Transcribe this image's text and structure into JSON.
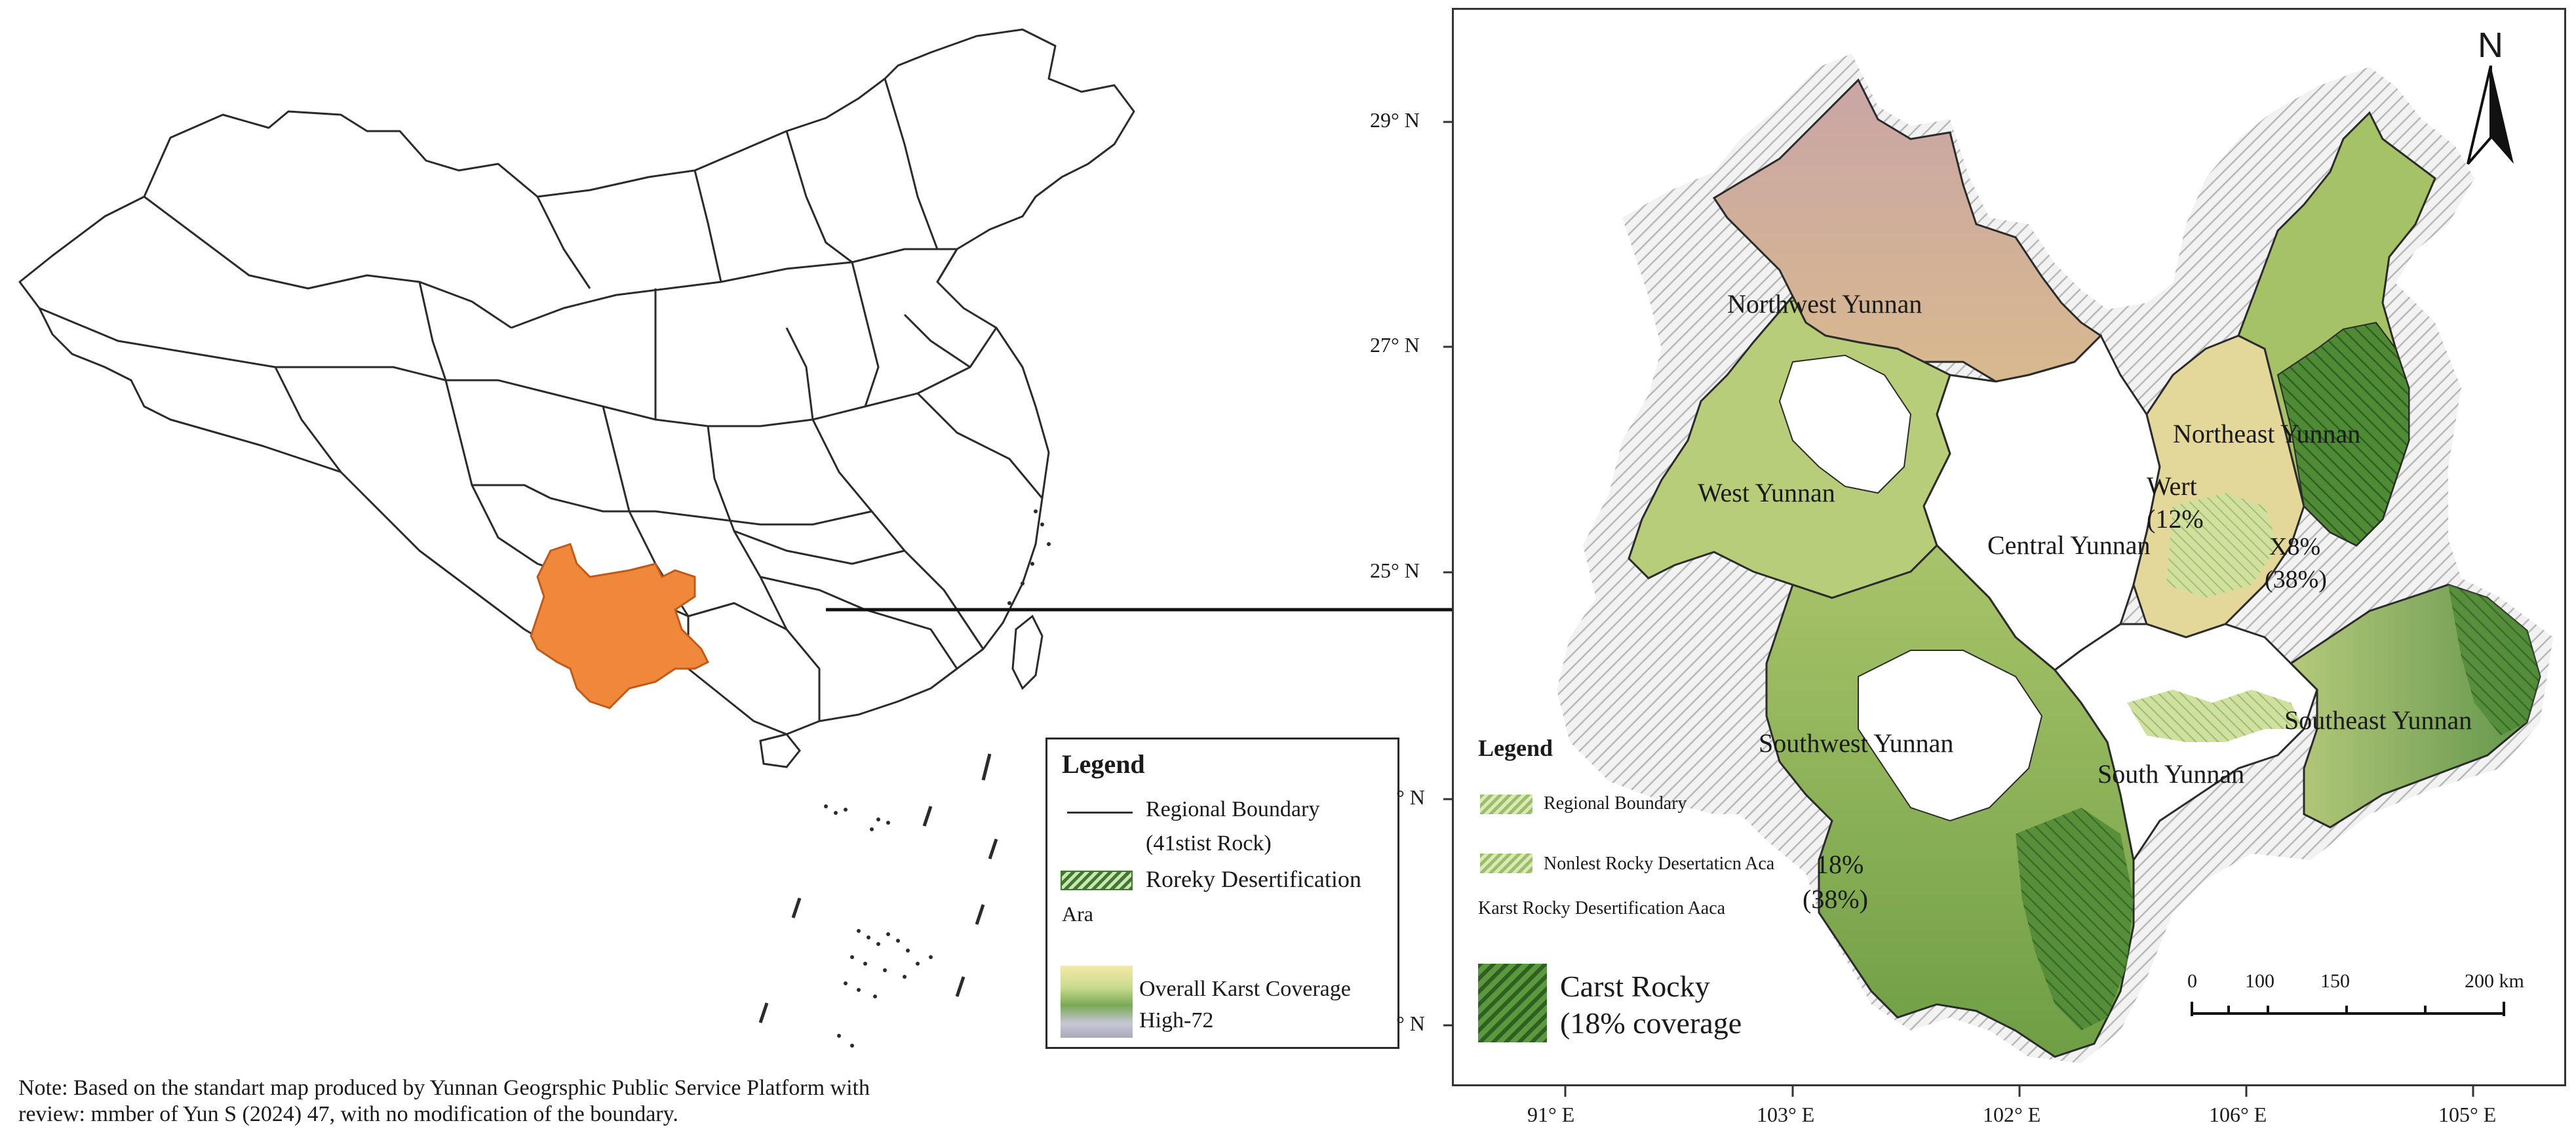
{
  "colors": {
    "highlight_province": "#F0883C",
    "boundary": "#2b2b2b",
    "terrain_high": "#c49a8a",
    "terrain_mid": "#d9c98a",
    "terrain_low": "#8fb45a",
    "karst_dark": "#3e7a2e",
    "hatch_halo": "#bdbdbd",
    "arrow": "#111111"
  },
  "left_map": {
    "legend": {
      "title": "Legend",
      "items": [
        {
          "label": "Regional Boundary",
          "symbol": "line"
        },
        {
          "label": "(41stist Rock)",
          "symbol": "none"
        },
        {
          "label": "Roreky Desertification",
          "symbol": "hatch-dark"
        },
        {
          "label": "Ara",
          "symbol": "none"
        },
        {
          "label": "Overall Karst Coverage",
          "symbol": "gradient"
        },
        {
          "label": "High-72",
          "symbol": "none"
        }
      ]
    },
    "note_line1": "Note: Based on the standart map produced by Yunnan Geogrsphic Public Service Platform with",
    "note_line2": "review: mmber of Yun S (2024) 47, with no modification of the boundary."
  },
  "right_map": {
    "north_label": "N",
    "lat_labels": [
      "29° N",
      "27° N",
      "25° N",
      "° N",
      "° N"
    ],
    "lon_labels": [
      "91° E",
      "103° E",
      "102° E",
      "106° E",
      "105° E"
    ],
    "regions": {
      "northwest": "Northwest Yunnan",
      "west": "West Yunnan",
      "central": "Central Yunnan",
      "northeast": "Northeast Yunnan",
      "southwest": "Southwest Yunnan",
      "south": "South Yunnan",
      "southeast": "Southeast Yunnan",
      "wert": "Wert",
      "wert_pct": "(12%",
      "ne_pct1": "X8%",
      "ne_pct2": "(38%)",
      "sw_pct1": "18%",
      "sw_pct2": "(38%)"
    },
    "legend": {
      "title": "Legend",
      "item1": "Regional Boundary",
      "item2": "Nonlest Rocky Desertaticn Aca",
      "item3": "Karst Rocky Desertification Aaca",
      "big1": "Carst Rocky",
      "big2": "(18% coverage"
    },
    "scale": {
      "ticks": [
        "0",
        "100",
        "150",
        "200 km"
      ]
    }
  }
}
